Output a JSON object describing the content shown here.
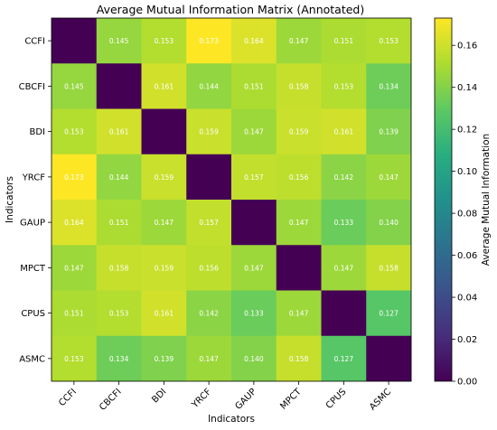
{
  "chart_data": {
    "type": "heatmap",
    "title": "Average Mutual Information Matrix (Annotated)",
    "xlabel": "Indicators",
    "ylabel": "Indicators",
    "colorbar_label": "Average Mutual Information",
    "colormap": "viridis",
    "value_range": [
      0.0,
      0.173
    ],
    "colorbar_ticks": [
      "0.00",
      "0.02",
      "0.04",
      "0.06",
      "0.08",
      "0.10",
      "0.12",
      "0.14",
      "0.16"
    ],
    "colorbar_tick_values": [
      0.0,
      0.02,
      0.04,
      0.06,
      0.08,
      0.1,
      0.12,
      0.14,
      0.16
    ],
    "x_categories": [
      "CCFI",
      "CBCFI",
      "BDI",
      "YRCF",
      "GAUP",
      "MPCT",
      "CPUS",
      "ASMC"
    ],
    "y_categories": [
      "CCFI",
      "CBCFI",
      "BDI",
      "YRCF",
      "GAUP",
      "MPCT",
      "CPUS",
      "ASMC"
    ],
    "values": [
      [
        0.0,
        0.145,
        0.153,
        0.173,
        0.164,
        0.147,
        0.151,
        0.153
      ],
      [
        0.145,
        0.0,
        0.161,
        0.144,
        0.151,
        0.158,
        0.153,
        0.134
      ],
      [
        0.153,
        0.161,
        0.0,
        0.159,
        0.147,
        0.159,
        0.161,
        0.139
      ],
      [
        0.173,
        0.144,
        0.159,
        0.0,
        0.157,
        0.156,
        0.142,
        0.147
      ],
      [
        0.164,
        0.151,
        0.147,
        0.157,
        0.0,
        0.147,
        0.133,
        0.14
      ],
      [
        0.147,
        0.158,
        0.159,
        0.156,
        0.147,
        0.0,
        0.147,
        0.158
      ],
      [
        0.151,
        0.153,
        0.161,
        0.142,
        0.133,
        0.147,
        0.0,
        0.127
      ],
      [
        0.153,
        0.134,
        0.139,
        0.147,
        0.14,
        0.158,
        0.127,
        0.0
      ]
    ],
    "labels": [
      [
        "",
        "0.145",
        "0.153",
        "0.173",
        "0.164",
        "0.147",
        "0.151",
        "0.153"
      ],
      [
        "0.145",
        "",
        "0.161",
        "0.144",
        "0.151",
        "0.158",
        "0.153",
        "0.134"
      ],
      [
        "0.153",
        "0.161",
        "",
        "0.159",
        "0.147",
        "0.159",
        "0.161",
        "0.139"
      ],
      [
        "0.173",
        "0.144",
        "0.159",
        "",
        "0.157",
        "0.156",
        "0.142",
        "0.147"
      ],
      [
        "0.164",
        "0.151",
        "0.147",
        "0.157",
        "",
        "0.147",
        "0.133",
        "0.140"
      ],
      [
        "0.147",
        "0.158",
        "0.159",
        "0.156",
        "0.147",
        "",
        "0.147",
        "0.158"
      ],
      [
        "0.151",
        "0.153",
        "0.161",
        "0.142",
        "0.133",
        "0.147",
        "",
        "0.127"
      ],
      [
        "0.153",
        "0.134",
        "0.139",
        "0.147",
        "0.140",
        "0.158",
        "0.127",
        ""
      ]
    ],
    "grid": false,
    "legend": "colorbar-right"
  }
}
